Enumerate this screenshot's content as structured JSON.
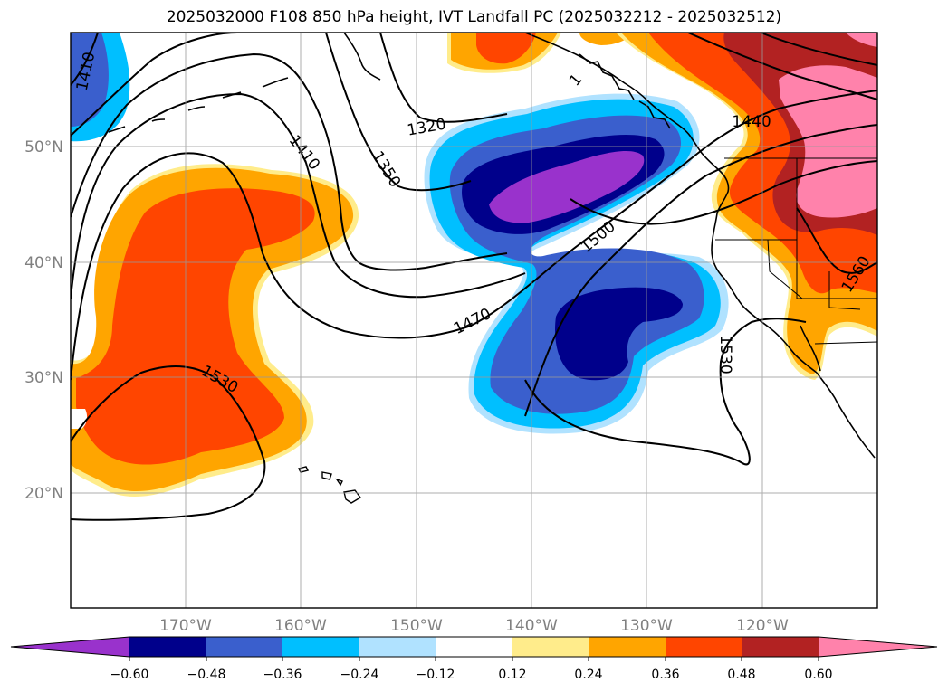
{
  "title": "2025032000 F108 850 hPa height, IVT Landfall PC (2025032212 - 2025032512)",
  "map": {
    "lat_ticks": [
      "50°N",
      "40°N",
      "30°N",
      "20°N"
    ],
    "lon_ticks": [
      "170°W",
      "160°W",
      "150°W",
      "140°W",
      "130°W",
      "120°W"
    ],
    "height_contour_labels": [
      "1410",
      "1410",
      "1320",
      "1350",
      "1440",
      "1500",
      "1470",
      "1530",
      "1530",
      "1560",
      "1"
    ]
  },
  "colorbar": {
    "ticks": [
      "−0.60",
      "−0.48",
      "−0.36",
      "−0.24",
      "−0.12",
      "0.12",
      "0.24",
      "0.36",
      "0.48",
      "0.60"
    ],
    "colors": [
      "#9932CC",
      "#00008B",
      "#3A5FCD",
      "#00BFFF",
      "#B0E2FF",
      "#FFFFFF",
      "#FFEC8B",
      "#FFA500",
      "#FF4500",
      "#B22222",
      "#FF82AB"
    ],
    "extend": "both"
  }
}
